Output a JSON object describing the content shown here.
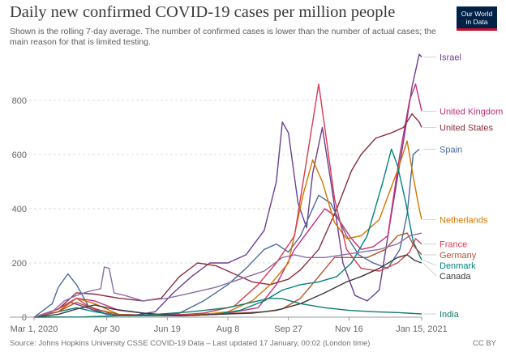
{
  "header": {
    "title": "Daily new confirmed COVID-19 cases per million people",
    "subtitle": "Shown is the rolling 7-day average. The number of confirmed cases is lower than the number of actual cases; the main reason for that is limited testing.",
    "logo_line1": "Our World",
    "logo_line2": "in Data"
  },
  "footer": {
    "source": "Source: Johns Hopkins University CSSE COVID-19 Data – Last updated 17 January, 00:02 (London time)",
    "license": "CC BY"
  },
  "chart_data": {
    "type": "line",
    "title": "Daily new confirmed COVID-19 cases per million people",
    "xlabel": "",
    "ylabel": "",
    "x_ticks": [
      "Mar 1, 2020",
      "Apr 30",
      "Jun 19",
      "Aug 8",
      "Sep 27",
      "Nov 16",
      "Jan 15, 2021"
    ],
    "x_tick_days": [
      0,
      60,
      110,
      160,
      210,
      260,
      320
    ],
    "y_ticks": [
      0,
      200,
      400,
      600,
      800
    ],
    "ylim": [
      0,
      1000
    ],
    "xlim_days": [
      0,
      320
    ],
    "grid": "horizontal-dashed",
    "legend": "end-labels-right",
    "series": [
      {
        "name": "Israel",
        "color": "#6d3e91",
        "points": [
          [
            0,
            0
          ],
          [
            20,
            20
          ],
          [
            30,
            55
          ],
          [
            40,
            40
          ],
          [
            60,
            10
          ],
          [
            80,
            5
          ],
          [
            100,
            20
          ],
          [
            115,
            90
          ],
          [
            130,
            150
          ],
          [
            145,
            200
          ],
          [
            160,
            200
          ],
          [
            175,
            230
          ],
          [
            190,
            320
          ],
          [
            200,
            500
          ],
          [
            205,
            720
          ],
          [
            210,
            680
          ],
          [
            218,
            420
          ],
          [
            225,
            330
          ],
          [
            230,
            530
          ],
          [
            238,
            700
          ],
          [
            245,
            500
          ],
          [
            255,
            200
          ],
          [
            265,
            80
          ],
          [
            275,
            60
          ],
          [
            285,
            100
          ],
          [
            295,
            380
          ],
          [
            305,
            650
          ],
          [
            312,
            850
          ],
          [
            318,
            970
          ],
          [
            320,
            960
          ]
        ]
      },
      {
        "name": "United Kingdom",
        "color": "#c42e7c",
        "points": [
          [
            0,
            0
          ],
          [
            20,
            30
          ],
          [
            35,
            70
          ],
          [
            50,
            60
          ],
          [
            70,
            25
          ],
          [
            100,
            10
          ],
          [
            130,
            10
          ],
          [
            160,
            15
          ],
          [
            185,
            35
          ],
          [
            200,
            120
          ],
          [
            215,
            250
          ],
          [
            230,
            340
          ],
          [
            240,
            400
          ],
          [
            250,
            370
          ],
          [
            262,
            290
          ],
          [
            270,
            250
          ],
          [
            280,
            260
          ],
          [
            292,
            300
          ],
          [
            302,
            600
          ],
          [
            310,
            800
          ],
          [
            315,
            860
          ],
          [
            318,
            800
          ],
          [
            320,
            760
          ]
        ]
      },
      {
        "name": "United States",
        "color": "#8b2c3c",
        "points": [
          [
            0,
            0
          ],
          [
            20,
            30
          ],
          [
            35,
            90
          ],
          [
            50,
            85
          ],
          [
            70,
            70
          ],
          [
            90,
            60
          ],
          [
            105,
            70
          ],
          [
            120,
            150
          ],
          [
            135,
            200
          ],
          [
            150,
            190
          ],
          [
            165,
            160
          ],
          [
            180,
            130
          ],
          [
            195,
            120
          ],
          [
            210,
            140
          ],
          [
            220,
            175
          ],
          [
            235,
            250
          ],
          [
            250,
            400
          ],
          [
            262,
            540
          ],
          [
            270,
            600
          ],
          [
            282,
            660
          ],
          [
            295,
            680
          ],
          [
            305,
            700
          ],
          [
            312,
            750
          ],
          [
            318,
            720
          ],
          [
            320,
            700
          ]
        ]
      },
      {
        "name": "Spain",
        "color": "#4c6a9c",
        "points": [
          [
            0,
            0
          ],
          [
            15,
            50
          ],
          [
            20,
            110
          ],
          [
            28,
            160
          ],
          [
            35,
            120
          ],
          [
            45,
            40
          ],
          [
            60,
            10
          ],
          [
            100,
            5
          ],
          [
            120,
            15
          ],
          [
            140,
            60
          ],
          [
            160,
            120
          ],
          [
            175,
            180
          ],
          [
            190,
            250
          ],
          [
            200,
            270
          ],
          [
            210,
            240
          ],
          [
            220,
            300
          ],
          [
            235,
            450
          ],
          [
            245,
            420
          ],
          [
            258,
            300
          ],
          [
            268,
            230
          ],
          [
            280,
            200
          ],
          [
            292,
            180
          ],
          [
            302,
            250
          ],
          [
            308,
            380
          ],
          [
            313,
            600
          ],
          [
            318,
            620
          ]
        ]
      },
      {
        "name": "Netherlands",
        "color": "#d27600",
        "points": [
          [
            0,
            0
          ],
          [
            20,
            20
          ],
          [
            35,
            70
          ],
          [
            50,
            50
          ],
          [
            70,
            10
          ],
          [
            110,
            5
          ],
          [
            140,
            10
          ],
          [
            160,
            20
          ],
          [
            180,
            60
          ],
          [
            195,
            120
          ],
          [
            210,
            200
          ],
          [
            222,
            450
          ],
          [
            230,
            580
          ],
          [
            238,
            500
          ],
          [
            248,
            350
          ],
          [
            258,
            290
          ],
          [
            270,
            300
          ],
          [
            285,
            360
          ],
          [
            300,
            540
          ],
          [
            308,
            650
          ],
          [
            313,
            520
          ],
          [
            318,
            400
          ],
          [
            320,
            360
          ]
        ]
      },
      {
        "name": "France",
        "color": "#d73c50",
        "points": [
          [
            0,
            0
          ],
          [
            20,
            30
          ],
          [
            35,
            70
          ],
          [
            45,
            40
          ],
          [
            65,
            10
          ],
          [
            110,
            5
          ],
          [
            140,
            15
          ],
          [
            165,
            40
          ],
          [
            185,
            120
          ],
          [
            200,
            200
          ],
          [
            215,
            300
          ],
          [
            230,
            720
          ],
          [
            235,
            860
          ],
          [
            240,
            700
          ],
          [
            248,
            440
          ],
          [
            258,
            250
          ],
          [
            270,
            180
          ],
          [
            285,
            170
          ],
          [
            300,
            200
          ],
          [
            310,
            240
          ],
          [
            315,
            290
          ],
          [
            320,
            270
          ]
        ]
      },
      {
        "name": "Denmark",
        "color": "#00847e",
        "points": [
          [
            0,
            0
          ],
          [
            20,
            20
          ],
          [
            35,
            35
          ],
          [
            50,
            20
          ],
          [
            70,
            5
          ],
          [
            120,
            5
          ],
          [
            150,
            10
          ],
          [
            170,
            25
          ],
          [
            190,
            60
          ],
          [
            205,
            100
          ],
          [
            220,
            120
          ],
          [
            235,
            130
          ],
          [
            250,
            150
          ],
          [
            262,
            200
          ],
          [
            275,
            300
          ],
          [
            288,
            500
          ],
          [
            295,
            620
          ],
          [
            300,
            560
          ],
          [
            307,
            420
          ],
          [
            313,
            280
          ],
          [
            318,
            230
          ],
          [
            320,
            210
          ]
        ]
      },
      {
        "name": "Germany",
        "color": "#b2532f",
        "points": [
          [
            0,
            0
          ],
          [
            20,
            20
          ],
          [
            35,
            55
          ],
          [
            50,
            30
          ],
          [
            70,
            10
          ],
          [
            120,
            5
          ],
          [
            150,
            10
          ],
          [
            170,
            15
          ],
          [
            190,
            20
          ],
          [
            205,
            30
          ],
          [
            220,
            70
          ],
          [
            235,
            150
          ],
          [
            248,
            220
          ],
          [
            262,
            220
          ],
          [
            275,
            220
          ],
          [
            290,
            250
          ],
          [
            300,
            300
          ],
          [
            308,
            310
          ],
          [
            314,
            260
          ],
          [
            320,
            230
          ]
        ]
      },
      {
        "name": "Canada",
        "color": "#3a3a3a",
        "points": [
          [
            0,
            0
          ],
          [
            20,
            10
          ],
          [
            35,
            30
          ],
          [
            50,
            45
          ],
          [
            65,
            30
          ],
          [
            90,
            15
          ],
          [
            120,
            5
          ],
          [
            150,
            10
          ],
          [
            180,
            15
          ],
          [
            200,
            25
          ],
          [
            220,
            50
          ],
          [
            240,
            90
          ],
          [
            258,
            130
          ],
          [
            270,
            150
          ],
          [
            285,
            180
          ],
          [
            300,
            220
          ],
          [
            308,
            230
          ],
          [
            314,
            210
          ],
          [
            320,
            200
          ]
        ]
      },
      {
        "name": "India",
        "color": "#0f7a6d",
        "points": [
          [
            0,
            0
          ],
          [
            40,
            1
          ],
          [
            70,
            5
          ],
          [
            100,
            10
          ],
          [
            130,
            20
          ],
          [
            160,
            35
          ],
          [
            180,
            55
          ],
          [
            195,
            70
          ],
          [
            205,
            68
          ],
          [
            220,
            50
          ],
          [
            240,
            35
          ],
          [
            260,
            25
          ],
          [
            280,
            20
          ],
          [
            300,
            17
          ],
          [
            320,
            12
          ]
        ]
      },
      {
        "name": "",
        "color": "#8a6fa8",
        "points": [
          [
            0,
            0
          ],
          [
            15,
            20
          ],
          [
            25,
            60
          ],
          [
            35,
            80
          ],
          [
            45,
            95
          ],
          [
            50,
            100
          ],
          [
            55,
            105
          ],
          [
            58,
            185
          ],
          [
            62,
            180
          ],
          [
            66,
            90
          ],
          [
            75,
            80
          ],
          [
            90,
            60
          ],
          [
            110,
            70
          ],
          [
            130,
            90
          ],
          [
            150,
            110
          ],
          [
            170,
            140
          ],
          [
            190,
            170
          ],
          [
            205,
            220
          ],
          [
            215,
            230
          ],
          [
            225,
            220
          ],
          [
            240,
            220
          ],
          [
            255,
            230
          ],
          [
            270,
            240
          ],
          [
            285,
            250
          ],
          [
            300,
            270
          ],
          [
            310,
            300
          ],
          [
            320,
            310
          ]
        ]
      }
    ]
  }
}
